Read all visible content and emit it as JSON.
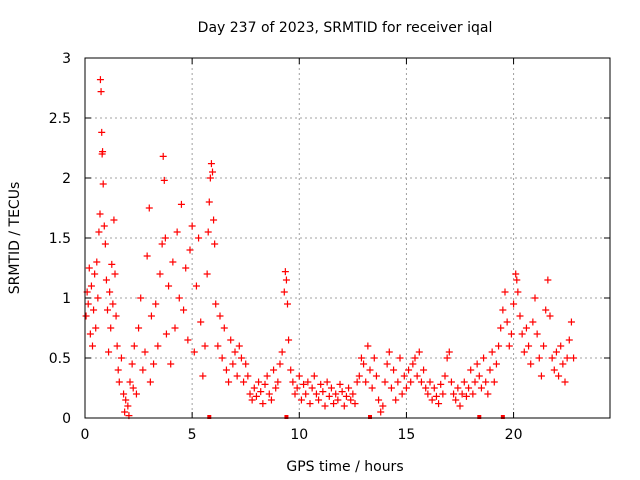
{
  "chart_data": {
    "type": "scatter",
    "title": "Day 237 of 2023, SRMTID for receiver iqal",
    "xlabel": "GPS time / hours",
    "ylabel": "SRMTID / TECUs",
    "xlim": [
      0,
      24.5
    ],
    "ylim": [
      0,
      3
    ],
    "xticks": [
      0,
      5,
      10,
      15,
      20
    ],
    "yticks": [
      0,
      0.5,
      1,
      1.5,
      2,
      2.5,
      3
    ],
    "xtick_labels": [
      "0",
      "5",
      "10",
      "15",
      "20"
    ],
    "ytick_labels": [
      "0",
      "0.5",
      "1",
      "1.5",
      "2",
      "2.5",
      "3"
    ],
    "grid": true,
    "marker": "+",
    "marker_color": "#ff0000",
    "axis_marks_x": [
      5.8,
      9.4,
      13.3,
      18.4,
      19.5
    ],
    "series": [
      {
        "name": "SRMTID",
        "points": [
          [
            0.05,
            0.85
          ],
          [
            0.1,
            1.05
          ],
          [
            0.15,
            0.95
          ],
          [
            0.2,
            1.25
          ],
          [
            0.25,
            0.7
          ],
          [
            0.3,
            1.1
          ],
          [
            0.35,
            0.6
          ],
          [
            0.4,
            0.9
          ],
          [
            0.45,
            1.2
          ],
          [
            0.5,
            0.75
          ],
          [
            0.55,
            1.3
          ],
          [
            0.6,
            1.0
          ],
          [
            0.65,
            1.55
          ],
          [
            0.7,
            1.7
          ],
          [
            0.72,
            2.82
          ],
          [
            0.75,
            2.72
          ],
          [
            0.78,
            2.38
          ],
          [
            0.8,
            2.2
          ],
          [
            0.82,
            2.22
          ],
          [
            0.85,
            1.95
          ],
          [
            0.9,
            1.6
          ],
          [
            0.95,
            1.45
          ],
          [
            1.0,
            1.15
          ],
          [
            1.05,
            0.9
          ],
          [
            1.1,
            0.55
          ],
          [
            1.15,
            1.05
          ],
          [
            1.2,
            0.75
          ],
          [
            1.25,
            1.28
          ],
          [
            1.3,
            0.95
          ],
          [
            1.35,
            1.65
          ],
          [
            1.4,
            1.2
          ],
          [
            1.45,
            0.85
          ],
          [
            1.5,
            0.6
          ],
          [
            1.55,
            0.4
          ],
          [
            1.6,
            0.3
          ],
          [
            1.7,
            0.5
          ],
          [
            1.8,
            0.2
          ],
          [
            1.85,
            0.05
          ],
          [
            1.9,
            0.15
          ],
          [
            2.0,
            0.1
          ],
          [
            2.05,
            0.02
          ],
          [
            2.1,
            0.3
          ],
          [
            2.2,
            0.45
          ],
          [
            2.25,
            0.25
          ],
          [
            2.3,
            0.6
          ],
          [
            2.4,
            0.2
          ],
          [
            2.5,
            0.75
          ],
          [
            2.6,
            1.0
          ],
          [
            2.7,
            0.4
          ],
          [
            2.8,
            0.55
          ],
          [
            2.9,
            1.35
          ],
          [
            3.0,
            1.75
          ],
          [
            3.05,
            0.3
          ],
          [
            3.1,
            0.85
          ],
          [
            3.2,
            0.45
          ],
          [
            3.3,
            0.95
          ],
          [
            3.4,
            0.6
          ],
          [
            3.5,
            1.2
          ],
          [
            3.6,
            1.45
          ],
          [
            3.65,
            2.18
          ],
          [
            3.7,
            1.98
          ],
          [
            3.75,
            1.5
          ],
          [
            3.8,
            0.7
          ],
          [
            3.9,
            1.1
          ],
          [
            4.0,
            0.45
          ],
          [
            4.1,
            1.3
          ],
          [
            4.2,
            0.75
          ],
          [
            4.3,
            1.55
          ],
          [
            4.4,
            1.0
          ],
          [
            4.5,
            1.78
          ],
          [
            4.6,
            0.9
          ],
          [
            4.7,
            1.25
          ],
          [
            4.8,
            0.65
          ],
          [
            4.9,
            1.4
          ],
          [
            5.0,
            1.6
          ],
          [
            5.1,
            0.55
          ],
          [
            5.2,
            1.1
          ],
          [
            5.3,
            1.5
          ],
          [
            5.4,
            0.8
          ],
          [
            5.5,
            0.35
          ],
          [
            5.6,
            0.6
          ],
          [
            5.7,
            1.2
          ],
          [
            5.75,
            1.55
          ],
          [
            5.8,
            1.8
          ],
          [
            5.85,
            2.0
          ],
          [
            5.9,
            2.12
          ],
          [
            5.95,
            2.05
          ],
          [
            6.0,
            1.65
          ],
          [
            6.05,
            1.45
          ],
          [
            6.1,
            0.95
          ],
          [
            6.2,
            0.6
          ],
          [
            6.3,
            0.85
          ],
          [
            6.4,
            0.5
          ],
          [
            6.5,
            0.75
          ],
          [
            6.6,
            0.4
          ],
          [
            6.7,
            0.3
          ],
          [
            6.8,
            0.65
          ],
          [
            6.9,
            0.45
          ],
          [
            7.0,
            0.55
          ],
          [
            7.1,
            0.35
          ],
          [
            7.2,
            0.6
          ],
          [
            7.3,
            0.5
          ],
          [
            7.4,
            0.3
          ],
          [
            7.5,
            0.45
          ],
          [
            7.6,
            0.35
          ],
          [
            7.7,
            0.2
          ],
          [
            7.8,
            0.15
          ],
          [
            7.9,
            0.25
          ],
          [
            8.0,
            0.18
          ],
          [
            8.1,
            0.3
          ],
          [
            8.2,
            0.22
          ],
          [
            8.3,
            0.12
          ],
          [
            8.4,
            0.28
          ],
          [
            8.5,
            0.35
          ],
          [
            8.6,
            0.2
          ],
          [
            8.7,
            0.15
          ],
          [
            8.8,
            0.4
          ],
          [
            8.9,
            0.25
          ],
          [
            9.0,
            0.3
          ],
          [
            9.1,
            0.45
          ],
          [
            9.2,
            0.55
          ],
          [
            9.3,
            1.05
          ],
          [
            9.35,
            1.22
          ],
          [
            9.4,
            1.15
          ],
          [
            9.45,
            0.95
          ],
          [
            9.5,
            0.65
          ],
          [
            9.6,
            0.4
          ],
          [
            9.7,
            0.3
          ],
          [
            9.8,
            0.2
          ],
          [
            9.9,
            0.25
          ],
          [
            10.0,
            0.35
          ],
          [
            10.1,
            0.15
          ],
          [
            10.2,
            0.28
          ],
          [
            10.3,
            0.2
          ],
          [
            10.4,
            0.3
          ],
          [
            10.5,
            0.12
          ],
          [
            10.6,
            0.25
          ],
          [
            10.7,
            0.35
          ],
          [
            10.8,
            0.2
          ],
          [
            10.9,
            0.15
          ],
          [
            11.0,
            0.28
          ],
          [
            11.1,
            0.22
          ],
          [
            11.2,
            0.1
          ],
          [
            11.3,
            0.3
          ],
          [
            11.4,
            0.18
          ],
          [
            11.5,
            0.25
          ],
          [
            11.6,
            0.12
          ],
          [
            11.7,
            0.2
          ],
          [
            11.8,
            0.15
          ],
          [
            11.9,
            0.28
          ],
          [
            12.0,
            0.22
          ],
          [
            12.1,
            0.1
          ],
          [
            12.2,
            0.18
          ],
          [
            12.3,
            0.25
          ],
          [
            12.4,
            0.15
          ],
          [
            12.5,
            0.2
          ],
          [
            12.6,
            0.12
          ],
          [
            12.7,
            0.3
          ],
          [
            12.8,
            0.35
          ],
          [
            12.9,
            0.5
          ],
          [
            13.0,
            0.45
          ],
          [
            13.1,
            0.3
          ],
          [
            13.2,
            0.6
          ],
          [
            13.3,
            0.4
          ],
          [
            13.4,
            0.25
          ],
          [
            13.5,
            0.5
          ],
          [
            13.6,
            0.35
          ],
          [
            13.7,
            0.15
          ],
          [
            13.8,
            0.05
          ],
          [
            13.9,
            0.1
          ],
          [
            14.0,
            0.3
          ],
          [
            14.1,
            0.45
          ],
          [
            14.2,
            0.55
          ],
          [
            14.3,
            0.25
          ],
          [
            14.4,
            0.4
          ],
          [
            14.5,
            0.15
          ],
          [
            14.6,
            0.3
          ],
          [
            14.7,
            0.5
          ],
          [
            14.8,
            0.2
          ],
          [
            14.9,
            0.35
          ],
          [
            15.0,
            0.25
          ],
          [
            15.1,
            0.4
          ],
          [
            15.2,
            0.3
          ],
          [
            15.3,
            0.45
          ],
          [
            15.4,
            0.5
          ],
          [
            15.5,
            0.35
          ],
          [
            15.6,
            0.55
          ],
          [
            15.7,
            0.3
          ],
          [
            15.8,
            0.4
          ],
          [
            15.9,
            0.25
          ],
          [
            16.0,
            0.2
          ],
          [
            16.1,
            0.3
          ],
          [
            16.2,
            0.15
          ],
          [
            16.3,
            0.25
          ],
          [
            16.4,
            0.18
          ],
          [
            16.5,
            0.12
          ],
          [
            16.6,
            0.28
          ],
          [
            16.7,
            0.2
          ],
          [
            16.8,
            0.35
          ],
          [
            16.9,
            0.5
          ],
          [
            17.0,
            0.55
          ],
          [
            17.1,
            0.3
          ],
          [
            17.2,
            0.2
          ],
          [
            17.3,
            0.15
          ],
          [
            17.4,
            0.25
          ],
          [
            17.5,
            0.1
          ],
          [
            17.6,
            0.2
          ],
          [
            17.7,
            0.3
          ],
          [
            17.8,
            0.18
          ],
          [
            17.9,
            0.25
          ],
          [
            18.0,
            0.4
          ],
          [
            18.1,
            0.2
          ],
          [
            18.2,
            0.3
          ],
          [
            18.3,
            0.45
          ],
          [
            18.4,
            0.35
          ],
          [
            18.5,
            0.25
          ],
          [
            18.6,
            0.5
          ],
          [
            18.7,
            0.3
          ],
          [
            18.8,
            0.2
          ],
          [
            18.9,
            0.4
          ],
          [
            19.0,
            0.55
          ],
          [
            19.1,
            0.3
          ],
          [
            19.2,
            0.45
          ],
          [
            19.3,
            0.6
          ],
          [
            19.4,
            0.75
          ],
          [
            19.5,
            0.9
          ],
          [
            19.6,
            1.05
          ],
          [
            19.7,
            0.8
          ],
          [
            19.8,
            0.6
          ],
          [
            19.9,
            0.7
          ],
          [
            20.0,
            0.95
          ],
          [
            20.1,
            1.2
          ],
          [
            20.15,
            1.15
          ],
          [
            20.2,
            1.05
          ],
          [
            20.3,
            0.85
          ],
          [
            20.4,
            0.7
          ],
          [
            20.5,
            0.55
          ],
          [
            20.6,
            0.75
          ],
          [
            20.7,
            0.6
          ],
          [
            20.8,
            0.45
          ],
          [
            20.9,
            0.8
          ],
          [
            21.0,
            1.0
          ],
          [
            21.1,
            0.7
          ],
          [
            21.2,
            0.5
          ],
          [
            21.3,
            0.35
          ],
          [
            21.4,
            0.6
          ],
          [
            21.5,
            0.9
          ],
          [
            21.6,
            1.15
          ],
          [
            21.7,
            0.85
          ],
          [
            21.8,
            0.5
          ],
          [
            21.9,
            0.4
          ],
          [
            22.0,
            0.55
          ],
          [
            22.1,
            0.35
          ],
          [
            22.2,
            0.6
          ],
          [
            22.3,
            0.45
          ],
          [
            22.4,
            0.3
          ],
          [
            22.5,
            0.5
          ],
          [
            22.6,
            0.65
          ],
          [
            22.7,
            0.8
          ],
          [
            22.8,
            0.5
          ]
        ]
      }
    ]
  }
}
